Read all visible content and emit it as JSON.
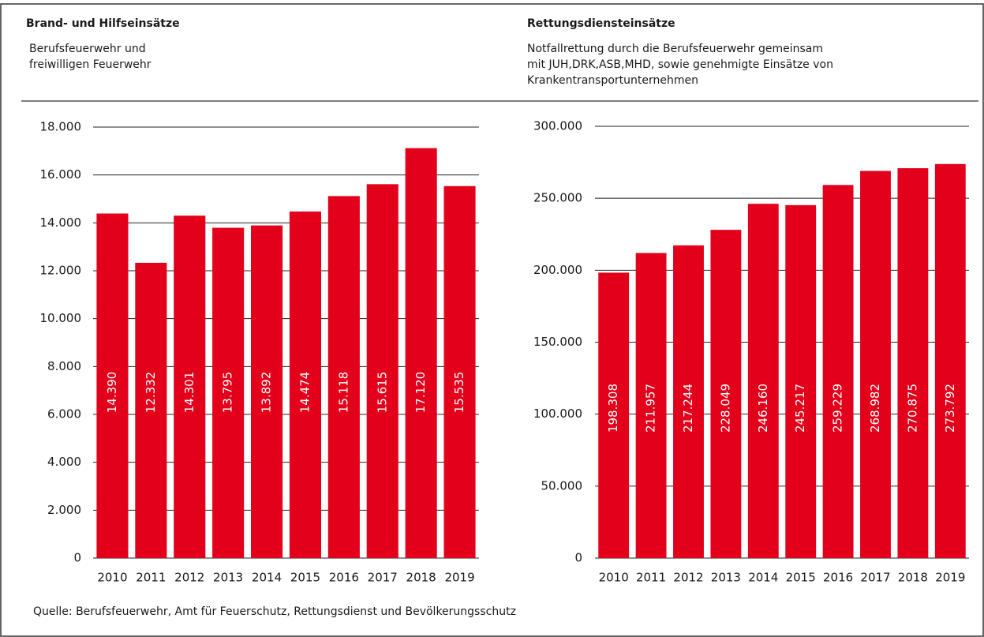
{
  "chart_data": [
    {
      "type": "bar",
      "title": "Brand- und Hilfseinsätze",
      "subtitle": [
        "Berufsfeuerwehr und",
        "freiwilligen Feuerwehr"
      ],
      "categories": [
        "2010",
        "2011",
        "2012",
        "2013",
        "2014",
        "2015",
        "2016",
        "2017",
        "2018",
        "2019"
      ],
      "values": [
        14390,
        12332,
        14301,
        13795,
        13892,
        14474,
        15118,
        15615,
        17120,
        15535
      ],
      "value_labels": [
        "14.390",
        "12.332",
        "14.301",
        "13.795",
        "13.892",
        "14.474",
        "15.118",
        "15.615",
        "17.120",
        "15.535"
      ],
      "color": "#e2001a",
      "ylim": [
        0,
        18000
      ],
      "yticks": [
        0,
        {
          "value": 2000,
          "label": "2.000"
        },
        {
          "value": 4000,
          "label": "4.000"
        },
        {
          "value": 6000,
          "label": "6.000"
        },
        {
          "value": 8000,
          "label": "8.000"
        },
        {
          "value": 10000,
          "label": "10.000"
        },
        {
          "value": 12000,
          "label": "12.000"
        },
        {
          "value": 14000,
          "label": "14.000"
        },
        {
          "value": 16000,
          "label": "16.000"
        },
        {
          "value": 18000,
          "label": "18.000"
        }
      ],
      "grid": true
    },
    {
      "type": "bar",
      "title": "Rettungsdiensteinsätze",
      "subtitle": [
        "Notfallrettung durch die Berufsfeuerwehr gemeinsam",
        "mit JUH,DRK,ASB,MHD, sowie genehmigte Einsätze von",
        "Krankentransportunternehmen"
      ],
      "categories": [
        "2010",
        "2011",
        "2012",
        "2013",
        "2014",
        "2015",
        "2016",
        "2017",
        "2018",
        "2019"
      ],
      "values": [
        198308,
        211957,
        217244,
        228049,
        246160,
        245217,
        259229,
        268982,
        270875,
        273792
      ],
      "value_labels": [
        "198.308",
        "211.957",
        "217.244",
        "228.049",
        "246.160",
        "245.217",
        "259.229",
        "268.982",
        "270.875",
        "273.792"
      ],
      "color": "#e2001a",
      "ylim": [
        0,
        300000
      ],
      "yticks": [
        0,
        {
          "value": 50000,
          "label": "50.000"
        },
        {
          "value": 100000,
          "label": "100.000"
        },
        {
          "value": 150000,
          "label": "150.000"
        },
        {
          "value": 200000,
          "label": "200.000"
        },
        {
          "value": 250000,
          "label": "250.000"
        },
        {
          "value": 300000,
          "label": "300.000"
        }
      ],
      "grid": true
    }
  ],
  "source": "Quelle: Berufsfeuerwehr, Amt für Feuerschutz, Rettungsdienst und Bevölkerungsschutz"
}
